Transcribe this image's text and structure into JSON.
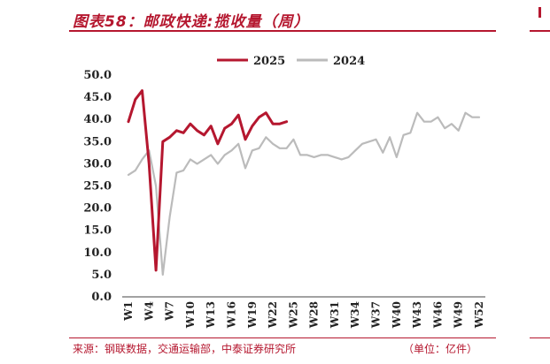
{
  "header": {
    "title": "图表58：邮政快递:揽收量（周）"
  },
  "footer": {
    "source": "来源：钢联数据，交通运输部，中泰证券研究所",
    "unit": "（单位：亿件）"
  },
  "chart_data": {
    "type": "line",
    "title": "图表58：邮政快递:揽收量（周）",
    "ylim": [
      0,
      50
    ],
    "yticks": [
      "0.0",
      "5.0",
      "10.0",
      "15.0",
      "20.0",
      "25.0",
      "30.0",
      "35.0",
      "40.0",
      "45.0",
      "50.0"
    ],
    "xticks": [
      "W1",
      "W4",
      "W7",
      "W10",
      "W13",
      "W16",
      "W19",
      "W22",
      "W25",
      "W28",
      "W31",
      "W34",
      "W37",
      "W40",
      "W43",
      "W46",
      "W49",
      "W52"
    ],
    "legend_position": "top-center",
    "series": [
      {
        "name": "2025",
        "color": "#b5172f",
        "points": [
          [
            1,
            39.5
          ],
          [
            2,
            44.5
          ],
          [
            3,
            46.5
          ],
          [
            4,
            30
          ],
          [
            5,
            6
          ],
          [
            6,
            35
          ],
          [
            7,
            36
          ],
          [
            8,
            37.5
          ],
          [
            9,
            37
          ],
          [
            10,
            39
          ],
          [
            11,
            37.5
          ],
          [
            12,
            36.5
          ],
          [
            13,
            38.5
          ],
          [
            14,
            34.5
          ],
          [
            15,
            38
          ],
          [
            16,
            39
          ],
          [
            17,
            41
          ],
          [
            18,
            35.5
          ],
          [
            19,
            38.5
          ],
          [
            20,
            40.5
          ],
          [
            21,
            41.5
          ],
          [
            22,
            39
          ],
          [
            23,
            39
          ],
          [
            24,
            39.5
          ]
        ]
      },
      {
        "name": "2024",
        "color": "#bbbbbb",
        "points": [
          [
            1,
            27.5
          ],
          [
            2,
            28.5
          ],
          [
            3,
            31
          ],
          [
            4,
            33
          ],
          [
            5,
            25
          ],
          [
            6,
            5
          ],
          [
            7,
            18
          ],
          [
            8,
            28
          ],
          [
            9,
            28.5
          ],
          [
            10,
            31
          ],
          [
            11,
            30
          ],
          [
            12,
            31
          ],
          [
            13,
            32
          ],
          [
            14,
            30
          ],
          [
            15,
            32
          ],
          [
            16,
            33
          ],
          [
            17,
            34.5
          ],
          [
            18,
            29
          ],
          [
            19,
            33
          ],
          [
            20,
            33.5
          ],
          [
            21,
            36
          ],
          [
            22,
            34.5
          ],
          [
            23,
            33.5
          ],
          [
            24,
            33.5
          ],
          [
            25,
            35.5
          ],
          [
            26,
            32
          ],
          [
            27,
            32
          ],
          [
            28,
            31.5
          ],
          [
            29,
            32
          ],
          [
            30,
            32
          ],
          [
            31,
            31.5
          ],
          [
            32,
            31
          ],
          [
            33,
            31.5
          ],
          [
            34,
            33
          ],
          [
            35,
            34.5
          ],
          [
            36,
            35
          ],
          [
            37,
            35.5
          ],
          [
            38,
            32.5
          ],
          [
            39,
            36
          ],
          [
            40,
            31.5
          ],
          [
            41,
            36.5
          ],
          [
            42,
            37
          ],
          [
            43,
            41.5
          ],
          [
            44,
            39.5
          ],
          [
            45,
            39.5
          ],
          [
            46,
            40.5
          ],
          [
            47,
            38
          ],
          [
            48,
            39
          ],
          [
            49,
            37.5
          ],
          [
            50,
            41.5
          ],
          [
            51,
            40.5
          ],
          [
            52,
            40.5
          ]
        ]
      }
    ]
  }
}
